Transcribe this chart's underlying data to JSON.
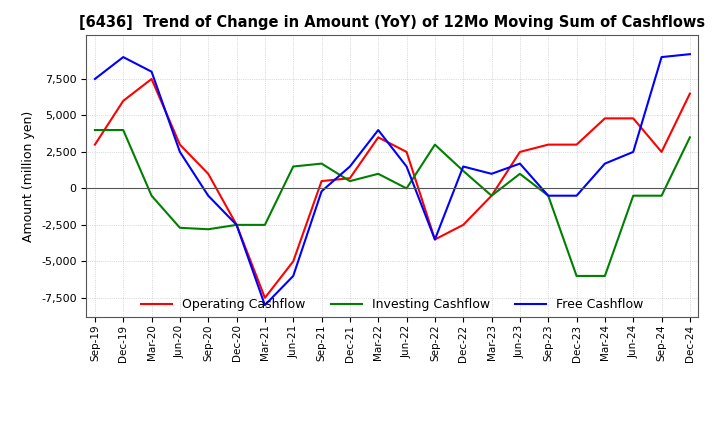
{
  "title": "[6436]  Trend of Change in Amount (YoY) of 12Mo Moving Sum of Cashflows",
  "ylabel": "Amount (million yen)",
  "ylim": [
    -8800,
    10500
  ],
  "yticks": [
    -7500,
    -5000,
    -2500,
    0,
    2500,
    5000,
    7500
  ],
  "x_labels": [
    "Sep-19",
    "Dec-19",
    "Mar-20",
    "Jun-20",
    "Sep-20",
    "Dec-20",
    "Mar-21",
    "Jun-21",
    "Sep-21",
    "Dec-21",
    "Mar-22",
    "Jun-22",
    "Sep-22",
    "Dec-22",
    "Mar-23",
    "Jun-23",
    "Sep-23",
    "Dec-23",
    "Mar-24",
    "Jun-24",
    "Sep-24",
    "Dec-24"
  ],
  "operating": [
    3000,
    6000,
    7500,
    3000,
    1000,
    -2500,
    -7500,
    -5000,
    500,
    700,
    3500,
    2500,
    -3500,
    -2500,
    -500,
    2500,
    3000,
    3000,
    4800,
    4800,
    2500,
    6500
  ],
  "investing": [
    4000,
    4000,
    -500,
    -2700,
    -2800,
    -2500,
    -2500,
    1500,
    1700,
    500,
    1000,
    0,
    3000,
    1200,
    -500,
    1000,
    -500,
    -6000,
    -6000,
    -500,
    -500,
    3500
  ],
  "free": [
    7500,
    9000,
    8000,
    2500,
    -500,
    -2500,
    -8000,
    -6000,
    -200,
    1500,
    4000,
    1500,
    -3500,
    1500,
    1000,
    1700,
    -500,
    -500,
    1700,
    2500,
    9000,
    9200
  ],
  "op_color": "#ff0000",
  "inv_color": "#008000",
  "free_color": "#0000ff",
  "bg_color": "#ffffff",
  "grid_color": "#bbbbbb",
  "legend_labels": [
    "Operating Cashflow",
    "Investing Cashflow",
    "Free Cashflow"
  ]
}
